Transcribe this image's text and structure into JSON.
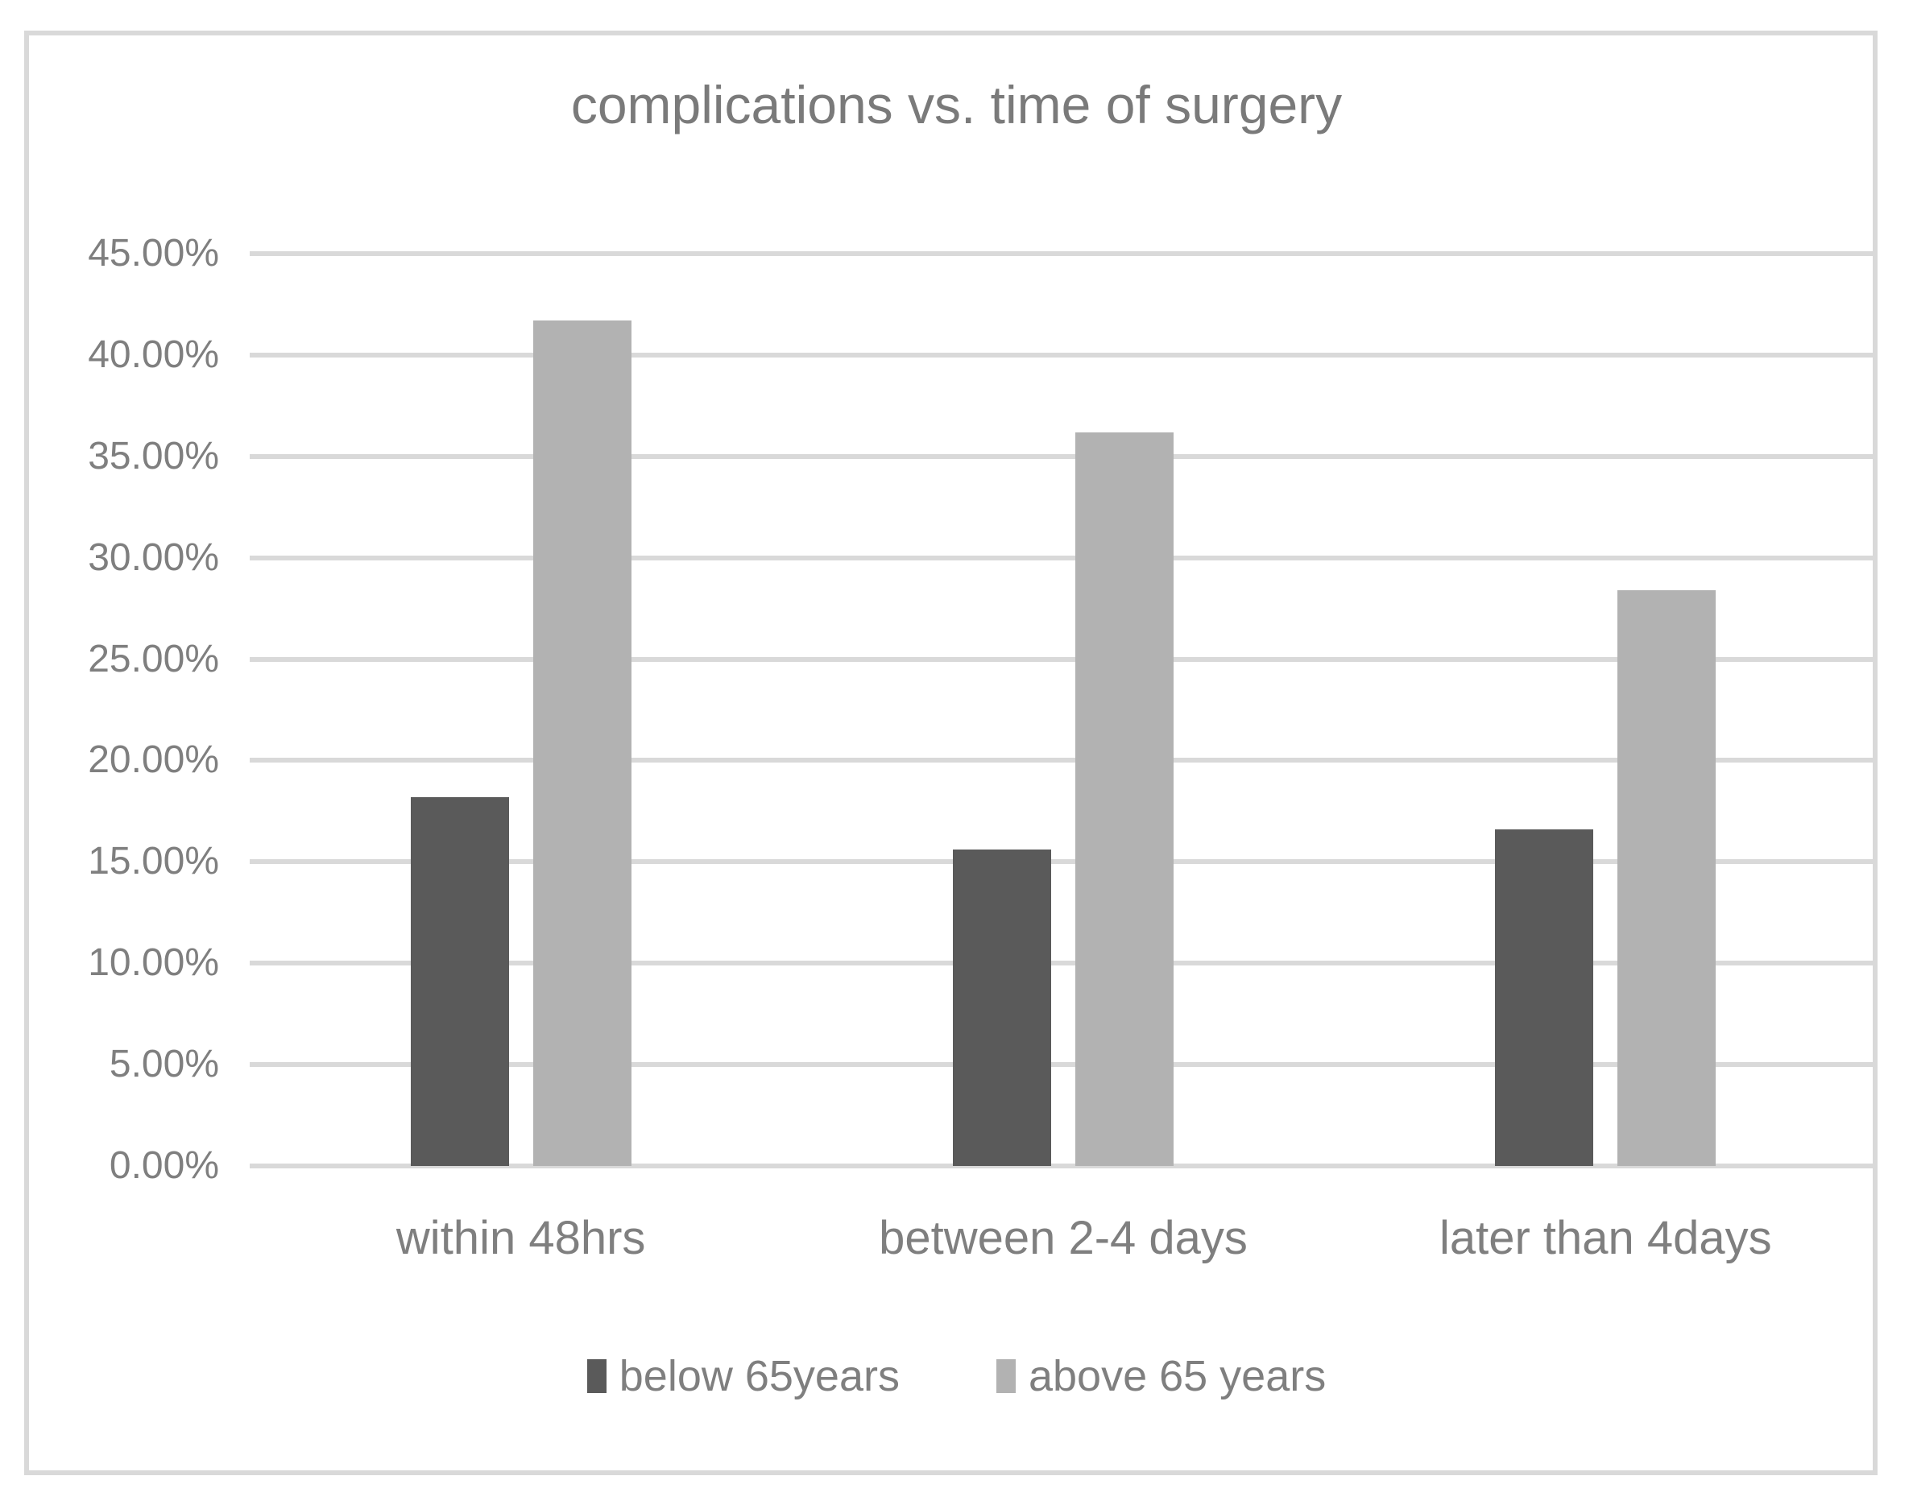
{
  "figure": {
    "background_color": "#ffffff",
    "border_color": "#d9d9d9",
    "gridline_color": "#d9d9d9",
    "text_color": "#7f7f7f"
  },
  "chart_data": {
    "type": "bar",
    "title": "complications vs. time of surgery",
    "categories": [
      "within 48hrs",
      "between 2-4 days",
      "later than 4days"
    ],
    "series": [
      {
        "name": "below 65years",
        "color": "#5a5a5a",
        "values": [
          18.2,
          15.6,
          16.6
        ]
      },
      {
        "name": "above 65 years",
        "color": "#b2b2b2",
        "values": [
          41.7,
          36.2,
          28.4
        ]
      }
    ],
    "xlabel": "",
    "ylabel": "",
    "y_axis": {
      "min": 0,
      "max": 45,
      "tick_step": 5,
      "tick_labels": [
        "0.00%",
        "5.00%",
        "10.00%",
        "15.00%",
        "20.00%",
        "25.00%",
        "30.00%",
        "35.00%",
        "40.00%",
        "45.00%"
      ],
      "unit": "percent"
    },
    "grid": "horizontal",
    "legend_position": "bottom"
  },
  "legend": {
    "items": [
      {
        "label": "below 65years",
        "color": "#5a5a5a"
      },
      {
        "label": "above 65 years",
        "color": "#b2b2b2"
      }
    ]
  }
}
